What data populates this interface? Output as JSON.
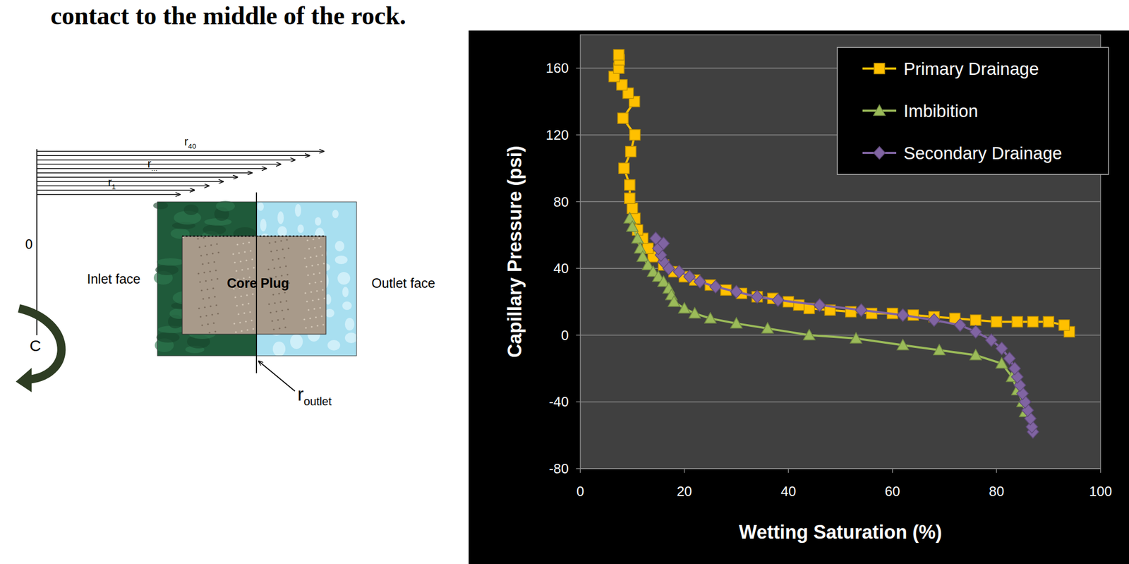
{
  "heading": "contact to the middle of the rock.",
  "diagram": {
    "radii": [
      {
        "text": "r",
        "sub": "40"
      },
      {
        "text": "r",
        "sub": "..."
      },
      {
        "text": "r",
        "sub": "1"
      }
    ],
    "origin": "0",
    "inlet": "Inlet face",
    "core": "Core Plug",
    "outlet": "Outlet face",
    "rotation": "C",
    "outlet_radius": {
      "text": "r",
      "sub": "outlet"
    }
  },
  "chart_data": {
    "type": "line",
    "x_label": "Wetting Saturation (%)",
    "y_label": "Capillary Pressure (psi)",
    "xlim": [
      0,
      100
    ],
    "ylim": [
      -80,
      180
    ],
    "xticks": [
      0,
      20,
      40,
      60,
      80,
      100
    ],
    "yticks": [
      -80,
      -40,
      0,
      40,
      80,
      120,
      160
    ],
    "grid": true,
    "legend": "upper right",
    "series": [
      {
        "name": "Primary Drainage",
        "color": "#ffc000",
        "marker": "square",
        "x": [
          94,
          93,
          90,
          87,
          84,
          80,
          76,
          72,
          68,
          64,
          60,
          56,
          52,
          48,
          44,
          42,
          40,
          37,
          34,
          31,
          28,
          25,
          22,
          20,
          18,
          16,
          14,
          13,
          12,
          11,
          10.5,
          10,
          9.5,
          9.5,
          8.4,
          9.7,
          10.5,
          8.2,
          10.4,
          9.2,
          8,
          6.5,
          7.4,
          7.5,
          7.4
        ],
        "values": [
          2,
          6,
          8,
          8,
          8,
          8,
          9,
          10,
          11,
          12,
          13,
          13,
          14,
          15,
          16,
          18,
          20,
          22,
          23,
          25,
          27,
          30,
          33,
          35,
          38,
          42,
          47,
          52,
          58,
          63,
          70,
          76,
          82,
          90,
          100,
          110,
          120,
          130,
          140,
          145,
          150,
          155,
          160,
          165,
          168
        ]
      },
      {
        "name": "Imbibition",
        "color": "#9bbb59",
        "marker": "triangle",
        "x": [
          9.5,
          10,
          11,
          11.5,
          12,
          13,
          14,
          15,
          16,
          17,
          17.5,
          18,
          20,
          22,
          25,
          30,
          36,
          44,
          53,
          62,
          69,
          76,
          81,
          83,
          84,
          85,
          85.5
        ],
        "values": [
          70,
          65,
          58,
          52,
          47,
          42,
          38,
          35,
          32,
          28,
          24,
          20,
          16,
          13,
          10,
          7,
          4,
          0,
          -2,
          -6,
          -9,
          -12,
          -17,
          -25,
          -33,
          -40,
          -46
        ]
      },
      {
        "name": "Secondary Drainage",
        "color": "#8064a2",
        "marker": "diamond",
        "x": [
          87,
          86.8,
          86.5,
          86,
          85.5,
          85,
          84.5,
          84,
          83.5,
          82.5,
          81,
          79,
          76,
          73,
          68,
          62,
          54,
          46,
          38,
          34,
          30,
          26,
          23,
          21,
          19,
          17,
          16,
          15.5,
          15,
          16,
          14.5
        ],
        "values": [
          -58,
          -55,
          -50,
          -45,
          -40,
          -35,
          -30,
          -25,
          -20,
          -14,
          -8,
          -3,
          2,
          6,
          9,
          12,
          15,
          18,
          21,
          23,
          26,
          29,
          32,
          35,
          38,
          40,
          44,
          48,
          52,
          55,
          58
        ]
      }
    ]
  }
}
